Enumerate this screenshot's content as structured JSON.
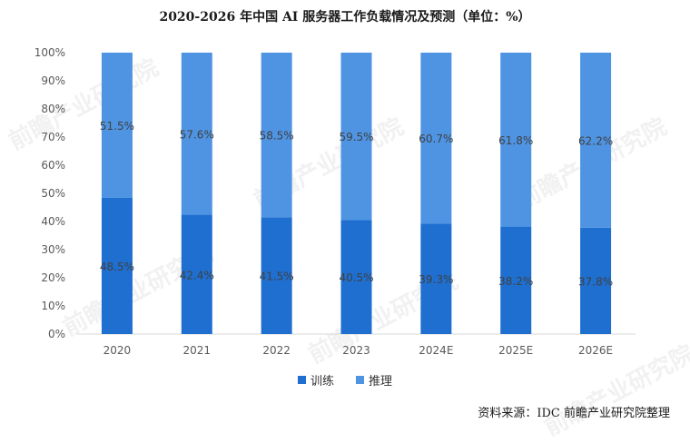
{
  "title": "2020-2026 年中国 AI 服务器工作负载情况及预测（单位：%）",
  "source": "资料来源：IDC 前瞻产业研究院整理",
  "watermark": "前瞻产业研究院",
  "colors": {
    "training": "#1f6fd1",
    "inference": "#4f94e3",
    "axis": "#d9d9d9",
    "grid": "#d9d9d9"
  },
  "chart_data": {
    "type": "bar",
    "stacked": true,
    "categories": [
      "2020",
      "2021",
      "2022",
      "2023",
      "2024E",
      "2025E",
      "2026E"
    ],
    "series": [
      {
        "name": "训练",
        "values": [
          48.5,
          42.4,
          41.5,
          40.5,
          39.3,
          38.2,
          37.8
        ]
      },
      {
        "name": "推理",
        "values": [
          51.5,
          57.6,
          58.5,
          59.5,
          60.7,
          61.8,
          62.2
        ]
      }
    ],
    "data_labels": {
      "训练": [
        "48.5%",
        "42.4%",
        "41.5%",
        "40.5%",
        "39.3%",
        "38.2%",
        "37.8%"
      ],
      "推理": [
        "51.5%",
        "57.6%",
        "58.5%",
        "59.5%",
        "60.7%",
        "61.8%",
        "62.2%"
      ]
    },
    "y_ticks": [
      "0%",
      "10%",
      "20%",
      "30%",
      "40%",
      "50%",
      "60%",
      "70%",
      "80%",
      "90%",
      "100%"
    ],
    "ylim": [
      0,
      100
    ],
    "grid": false,
    "legend_position": "bottom"
  }
}
